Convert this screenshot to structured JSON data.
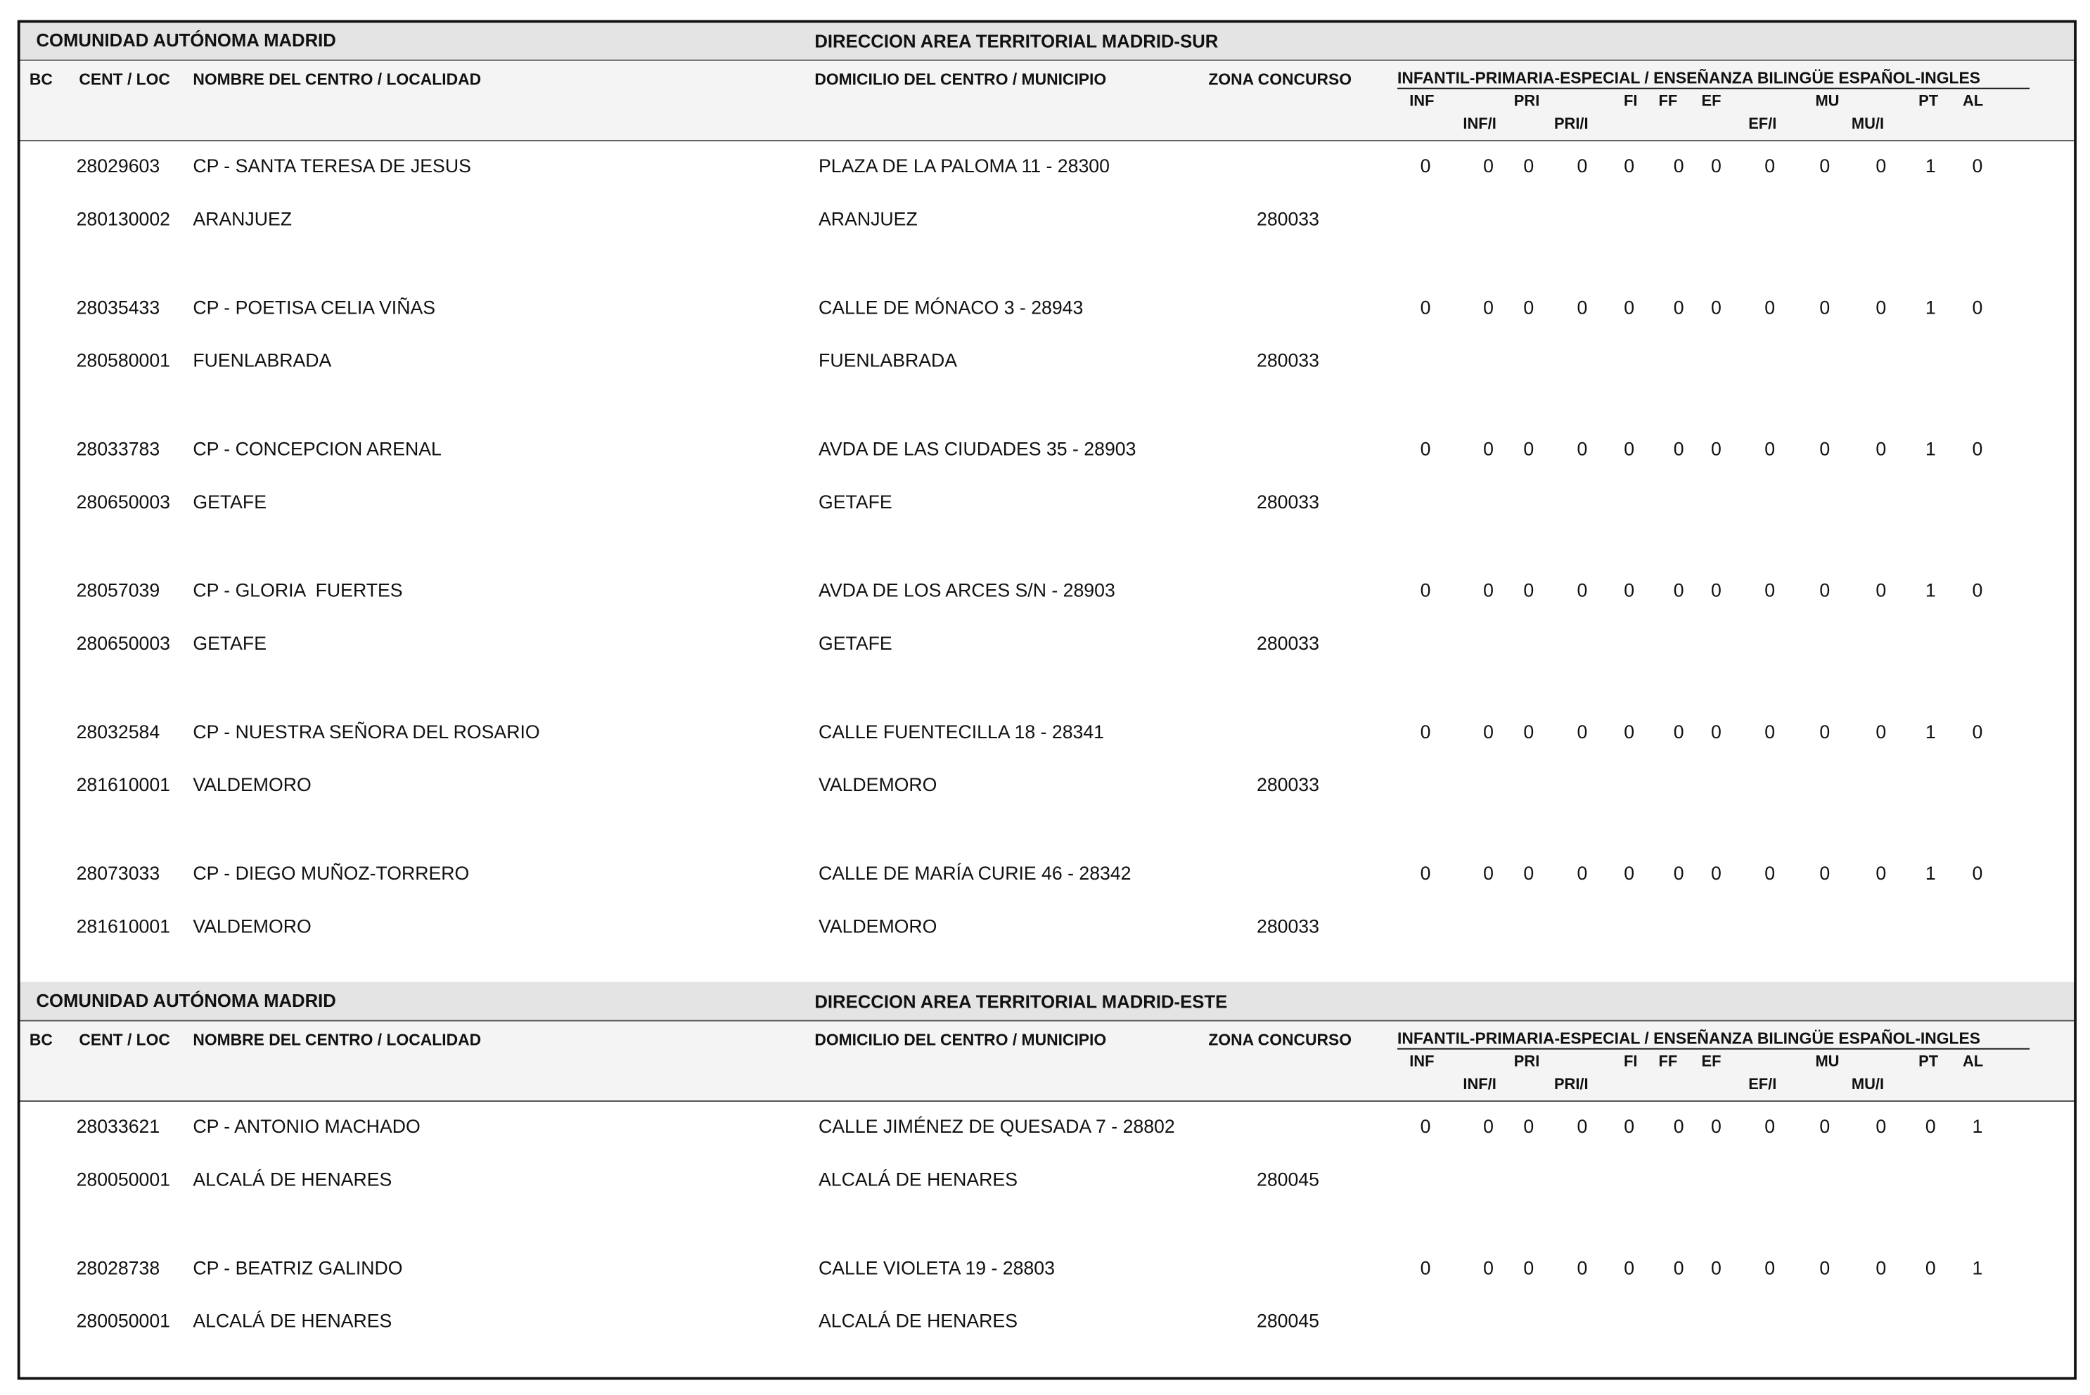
{
  "columns": {
    "bc": "BC",
    "cent_loc": "CENT / LOC",
    "nombre": "NOMBRE DEL CENTRO / LOCALIDAD",
    "domicilio": "DOMICILIO DEL CENTRO / MUNICIPIO",
    "zona": "ZONA CONCURSO",
    "grupo": "INFANTIL-PRIMARIA-ESPECIAL / ENSEÑANZA BILINGÜE ESPAÑOL-INGLES",
    "codes": [
      "INF",
      "INF/I",
      "PRI",
      "PRI/I",
      "FI",
      "FF",
      "EF",
      "EF/I",
      "MU",
      "MU/I",
      "PT",
      "AL"
    ]
  },
  "sections": [
    {
      "comunidad": "COMUNIDAD AUTÓNOMA MADRID",
      "direccion": "DIRECCION AREA TERRITORIAL MADRID-SUR",
      "rows": [
        {
          "centro": "28029603",
          "nombre": "CP - SANTA TERESA DE JESUS",
          "domicilio": "PLAZA DE LA PALOMA 11 - 28300",
          "loc": "280130002",
          "localidad": "ARANJUEZ",
          "municipio": "ARANJUEZ",
          "zona": "280033",
          "values": [
            0,
            0,
            0,
            0,
            0,
            0,
            0,
            0,
            0,
            0,
            1,
            0
          ]
        },
        {
          "centro": "28035433",
          "nombre": "CP - POETISA CELIA VIÑAS",
          "domicilio": "CALLE DE MÓNACO 3 - 28943",
          "loc": "280580001",
          "localidad": "FUENLABRADA",
          "municipio": "FUENLABRADA",
          "zona": "280033",
          "values": [
            0,
            0,
            0,
            0,
            0,
            0,
            0,
            0,
            0,
            0,
            1,
            0
          ]
        },
        {
          "centro": "28033783",
          "nombre": "CP - CONCEPCION ARENAL",
          "domicilio": "AVDA DE LAS CIUDADES 35 - 28903",
          "loc": "280650003",
          "localidad": "GETAFE",
          "municipio": "GETAFE",
          "zona": "280033",
          "values": [
            0,
            0,
            0,
            0,
            0,
            0,
            0,
            0,
            0,
            0,
            1,
            0
          ]
        },
        {
          "centro": "28057039",
          "nombre": "CP - GLORIA  FUERTES",
          "domicilio": "AVDA DE LOS ARCES S/N - 28903",
          "loc": "280650003",
          "localidad": "GETAFE",
          "municipio": "GETAFE",
          "zona": "280033",
          "values": [
            0,
            0,
            0,
            0,
            0,
            0,
            0,
            0,
            0,
            0,
            1,
            0
          ]
        },
        {
          "centro": "28032584",
          "nombre": "CP - NUESTRA SEÑORA DEL ROSARIO",
          "domicilio": "CALLE FUENTECILLA 18 - 28341",
          "loc": "281610001",
          "localidad": "VALDEMORO",
          "municipio": "VALDEMORO",
          "zona": "280033",
          "values": [
            0,
            0,
            0,
            0,
            0,
            0,
            0,
            0,
            0,
            0,
            1,
            0
          ]
        },
        {
          "centro": "28073033",
          "nombre": "CP - DIEGO MUÑOZ-TORRERO",
          "domicilio": "CALLE DE MARÍA CURIE 46 - 28342",
          "loc": "281610001",
          "localidad": "VALDEMORO",
          "municipio": "VALDEMORO",
          "zona": "280033",
          "values": [
            0,
            0,
            0,
            0,
            0,
            0,
            0,
            0,
            0,
            0,
            1,
            0
          ]
        }
      ]
    },
    {
      "comunidad": "COMUNIDAD AUTÓNOMA MADRID",
      "direccion": "DIRECCION AREA TERRITORIAL MADRID-ESTE",
      "rows": [
        {
          "centro": "28033621",
          "nombre": "CP - ANTONIO MACHADO",
          "domicilio": "CALLE JIMÉNEZ DE QUESADA 7 - 28802",
          "loc": "280050001",
          "localidad": "ALCALÁ DE HENARES",
          "municipio": "ALCALÁ DE HENARES",
          "zona": "280045",
          "values": [
            0,
            0,
            0,
            0,
            0,
            0,
            0,
            0,
            0,
            0,
            0,
            1
          ]
        },
        {
          "centro": "28028738",
          "nombre": "CP - BEATRIZ GALINDO",
          "domicilio": "CALLE VIOLETA 19 - 28803",
          "loc": "280050001",
          "localidad": "ALCALÁ DE HENARES",
          "municipio": "ALCALÁ DE HENARES",
          "zona": "280045",
          "values": [
            0,
            0,
            0,
            0,
            0,
            0,
            0,
            0,
            0,
            0,
            0,
            1
          ]
        }
      ]
    }
  ]
}
